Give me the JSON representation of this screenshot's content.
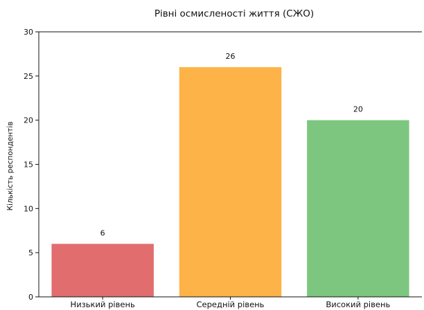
{
  "chart_data": {
    "type": "bar",
    "title": "Рівні осмисленості життя (СЖО)",
    "xlabel": "",
    "ylabel": "Кількість респондентів",
    "categories": [
      "Низький рівень",
      "Середній рівень",
      "Високий рівень"
    ],
    "values": [
      6,
      26,
      20
    ],
    "value_labels": [
      "6",
      "26",
      "20"
    ],
    "colors": [
      "#e26d6f",
      "#fdb347",
      "#7dc67f"
    ],
    "ylim": [
      0,
      30
    ],
    "yticks": [
      0,
      5,
      10,
      15,
      20,
      25,
      30
    ],
    "grid": false,
    "legend": "none"
  }
}
